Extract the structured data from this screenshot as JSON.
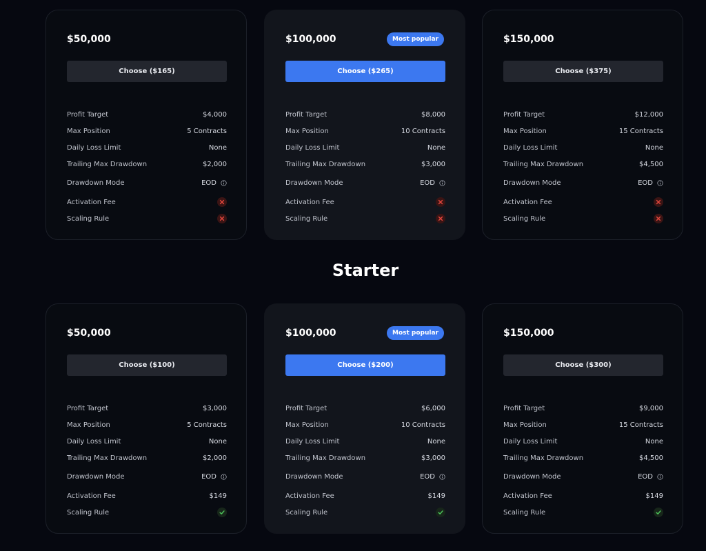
{
  "sections": [
    {
      "heading": "",
      "cards": [
        {
          "price": "$50,000",
          "badge": "",
          "button": "Choose ($165)",
          "featured": false,
          "profit_target": "$4,000",
          "max_position": "5 Contracts",
          "daily_loss_limit": "None",
          "trailing_max_drawdown": "$2,000",
          "drawdown_mode": "EOD",
          "activation_fee": "",
          "activation_fee_icon": "x-icon",
          "scaling_rule_icon": "x-icon"
        },
        {
          "price": "$100,000",
          "badge": "Most popular",
          "button": "Choose ($265)",
          "featured": true,
          "profit_target": "$8,000",
          "max_position": "10 Contracts",
          "daily_loss_limit": "None",
          "trailing_max_drawdown": "$3,000",
          "drawdown_mode": "EOD",
          "activation_fee": "",
          "activation_fee_icon": "x-icon",
          "scaling_rule_icon": "x-icon"
        },
        {
          "price": "$150,000",
          "badge": "",
          "button": "Choose ($375)",
          "featured": false,
          "profit_target": "$12,000",
          "max_position": "15 Contracts",
          "daily_loss_limit": "None",
          "trailing_max_drawdown": "$4,500",
          "drawdown_mode": "EOD",
          "activation_fee": "",
          "activation_fee_icon": "x-icon",
          "scaling_rule_icon": "x-icon"
        }
      ]
    },
    {
      "heading": "Starter",
      "cards": [
        {
          "price": "$50,000",
          "badge": "",
          "button": "Choose ($100)",
          "featured": false,
          "profit_target": "$3,000",
          "max_position": "5 Contracts",
          "daily_loss_limit": "None",
          "trailing_max_drawdown": "$2,000",
          "drawdown_mode": "EOD",
          "activation_fee": "$149",
          "activation_fee_icon": "",
          "scaling_rule_icon": "check-icon"
        },
        {
          "price": "$100,000",
          "badge": "Most popular",
          "button": "Choose ($200)",
          "featured": true,
          "profit_target": "$6,000",
          "max_position": "10 Contracts",
          "daily_loss_limit": "None",
          "trailing_max_drawdown": "$3,000",
          "drawdown_mode": "EOD",
          "activation_fee": "$149",
          "activation_fee_icon": "",
          "scaling_rule_icon": "check-icon"
        },
        {
          "price": "$150,000",
          "badge": "",
          "button": "Choose ($300)",
          "featured": false,
          "profit_target": "$9,000",
          "max_position": "15 Contracts",
          "daily_loss_limit": "None",
          "trailing_max_drawdown": "$4,500",
          "drawdown_mode": "EOD",
          "activation_fee": "$149",
          "activation_fee_icon": "",
          "scaling_rule_icon": "check-icon"
        }
      ]
    }
  ],
  "labels": {
    "profit_target": "Profit Target",
    "max_position": "Max Position",
    "daily_loss_limit": "Daily Loss Limit",
    "trailing_max_drawdown": "Trailing Max Drawdown",
    "drawdown_mode": "Drawdown Mode",
    "activation_fee": "Activation Fee",
    "scaling_rule": "Scaling Rule"
  },
  "colors": {
    "accent": "#3c78f0",
    "x_red": "#e0463c",
    "check_green": "#4cc25a"
  }
}
